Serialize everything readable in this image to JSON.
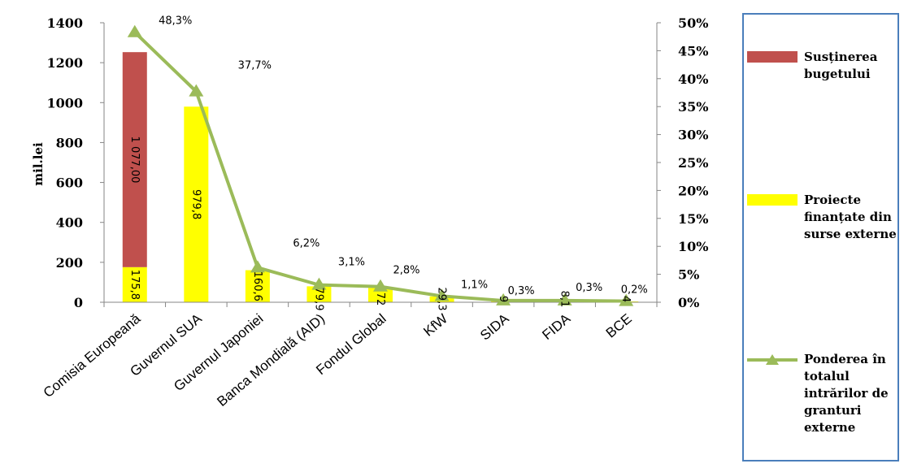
{
  "chart_data": {
    "type": "bar",
    "ylabel": "mil.lei",
    "ylim": [
      0,
      1400
    ],
    "yticks": [
      "0",
      "200",
      "400",
      "600",
      "800",
      "1000",
      "1200",
      "1400"
    ],
    "y2lim": [
      0,
      50
    ],
    "y2ticks": [
      "0%",
      "5%",
      "10%",
      "15%",
      "20%",
      "25%",
      "30%",
      "35%",
      "40%",
      "45%",
      "50%"
    ],
    "categories": [
      "Comisia Europeană",
      "Guvernul SUA",
      "Guvernul Japoniei",
      "Banca Mondială (AID)",
      "Fondul Global",
      "KfW",
      "SIDA",
      "FIDA",
      "BCE"
    ],
    "series": [
      {
        "name": "Susținerea bugetului",
        "color": "#c0504d",
        "values": [
          1077.0,
          0,
          0,
          0,
          0,
          0,
          0,
          0,
          0
        ],
        "labels": [
          "1 077,00",
          "",
          "",
          "",
          "",
          "",
          "",
          "",
          ""
        ]
      },
      {
        "name": "Proiecte finanțate din surse externe",
        "color": "#ffff00",
        "values": [
          175.8,
          979.8,
          160.6,
          79.9,
          72,
          29.3,
          9,
          8.1,
          4
        ],
        "labels": [
          "175,8",
          "979,8",
          "160,6",
          "79,9",
          "72",
          "29,3",
          "9",
          "8,1",
          "4"
        ]
      },
      {
        "name": "Ponderea în totalul intrărilor de granturi externe",
        "color": "#9bbb59",
        "axis": "right",
        "values": [
          48.3,
          37.7,
          6.2,
          3.1,
          2.8,
          1.1,
          0.3,
          0.3,
          0.2
        ],
        "labels": [
          "48,3%",
          "37,7%",
          "6,2%",
          "3,1%",
          "2,8%",
          "1,1%",
          "0,3%",
          "0,3%",
          "0,2%"
        ]
      }
    ],
    "legend_position": "right",
    "grid": false
  }
}
